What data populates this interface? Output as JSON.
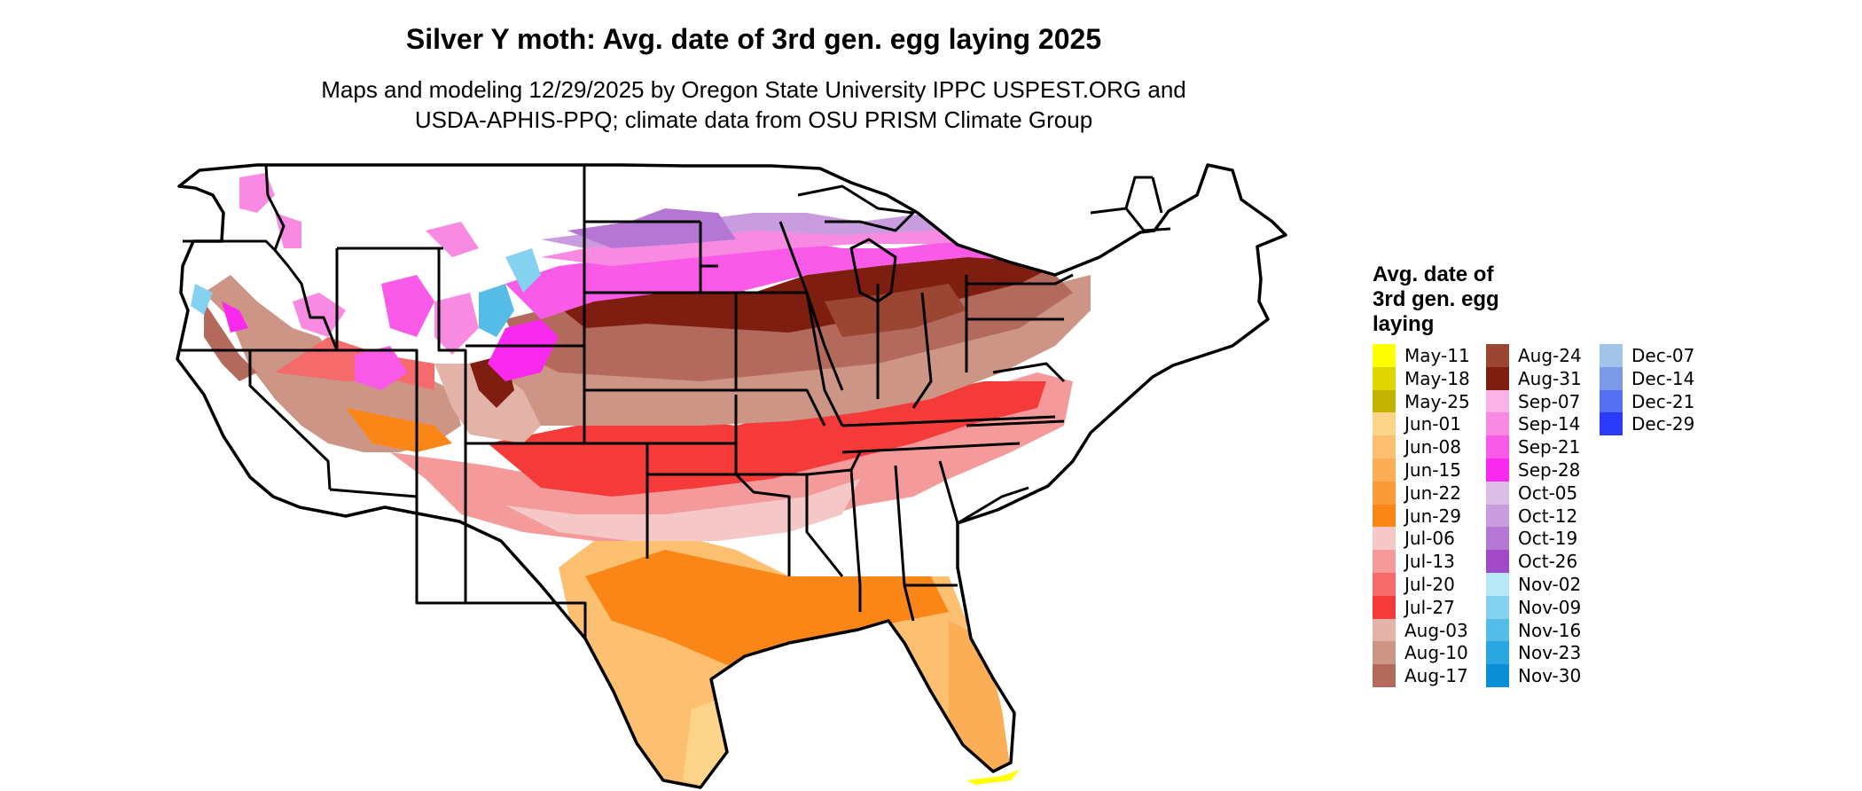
{
  "title": "Silver Y moth: Avg. date of 3rd gen. egg laying 2025",
  "subtitle_line1": "Maps and modeling 12/29/2025 by Oregon State University IPPC USPEST.ORG and",
  "subtitle_line2": "USDA-APHIS-PPQ; climate data from OSU PRISM Climate Group",
  "legend": {
    "title_lines": [
      "Avg. date of",
      "3rd gen. egg",
      "laying"
    ],
    "columns": [
      [
        {
          "label": "May-11",
          "color": "#ffff00"
        },
        {
          "label": "May-18",
          "color": "#dfd600"
        },
        {
          "label": "May-25",
          "color": "#c0b400"
        },
        {
          "label": "Jun-01",
          "color": "#fdd58a"
        },
        {
          "label": "Jun-08",
          "color": "#fcc070"
        },
        {
          "label": "Jun-15",
          "color": "#fcae56"
        },
        {
          "label": "Jun-22",
          "color": "#fb9a38"
        },
        {
          "label": "Jun-29",
          "color": "#fa8618"
        },
        {
          "label": "Jul-06",
          "color": "#f5c7c7"
        },
        {
          "label": "Jul-13",
          "color": "#f59a9a"
        },
        {
          "label": "Jul-20",
          "color": "#f56a6a"
        },
        {
          "label": "Jul-27",
          "color": "#f53a3a"
        },
        {
          "label": "Aug-03",
          "color": "#e3b3a8"
        },
        {
          "label": "Aug-10",
          "color": "#cc9585"
        },
        {
          "label": "Aug-17",
          "color": "#b36a5c"
        }
      ],
      [
        {
          "label": "Aug-24",
          "color": "#9a4632"
        },
        {
          "label": "Aug-31",
          "color": "#7e1e10"
        },
        {
          "label": "Sep-07",
          "color": "#f9b3e6"
        },
        {
          "label": "Sep-14",
          "color": "#f98ae2"
        },
        {
          "label": "Sep-21",
          "color": "#f95be8"
        },
        {
          "label": "Sep-28",
          "color": "#f929f0"
        },
        {
          "label": "Oct-05",
          "color": "#dcbde8"
        },
        {
          "label": "Oct-12",
          "color": "#c89cde"
        },
        {
          "label": "Oct-19",
          "color": "#b478d4"
        },
        {
          "label": "Oct-26",
          "color": "#a04ac8"
        },
        {
          "label": "Nov-02",
          "color": "#b8e8f8"
        },
        {
          "label": "Nov-09",
          "color": "#84d2f0"
        },
        {
          "label": "Nov-16",
          "color": "#55bce8"
        },
        {
          "label": "Nov-23",
          "color": "#2aa6e0"
        },
        {
          "label": "Nov-30",
          "color": "#0a8ed6"
        }
      ],
      [
        {
          "label": "Dec-07",
          "color": "#a2c4e8"
        },
        {
          "label": "Dec-14",
          "color": "#7c9ae8"
        },
        {
          "label": "Dec-21",
          "color": "#5470f0"
        },
        {
          "label": "Dec-29",
          "color": "#2a3af8"
        }
      ]
    ]
  }
}
